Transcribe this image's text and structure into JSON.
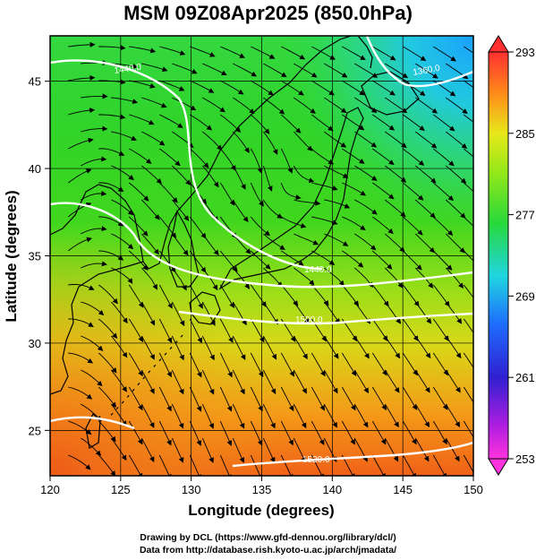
{
  "title": "MSM 09Z08Apr2025 (850.0hPa)",
  "xaxis": {
    "label": "Longitude (degrees)",
    "ticks": [
      120,
      125,
      130,
      135,
      140,
      145,
      150
    ],
    "range": [
      120,
      150
    ]
  },
  "yaxis": {
    "label": "Latitude  (degrees)",
    "ticks": [
      25,
      30,
      35,
      40,
      45
    ],
    "range": [
      22.4,
      47.6
    ]
  },
  "colorbar": {
    "ticks": [
      253,
      261,
      269,
      277,
      285,
      293
    ],
    "range": [
      253,
      293
    ]
  },
  "contours": [
    {
      "label": "1440.0"
    },
    {
      "label": "1440.0"
    },
    {
      "label": "1500.0"
    },
    {
      "label": "1520.0"
    },
    {
      "label": "1360.0"
    }
  ],
  "credits": {
    "drawing": "Drawing by DCL (https://www.gfd-dennou.org/library/dcl/)",
    "data": "Data from http://database.rish.kyoto-u.ac.jp/arch/jmadata/"
  },
  "colors": {
    "warm": "#f07a1e",
    "mid": "#32d61e",
    "cold": "#2fb6ff",
    "frame": "#000000"
  }
}
